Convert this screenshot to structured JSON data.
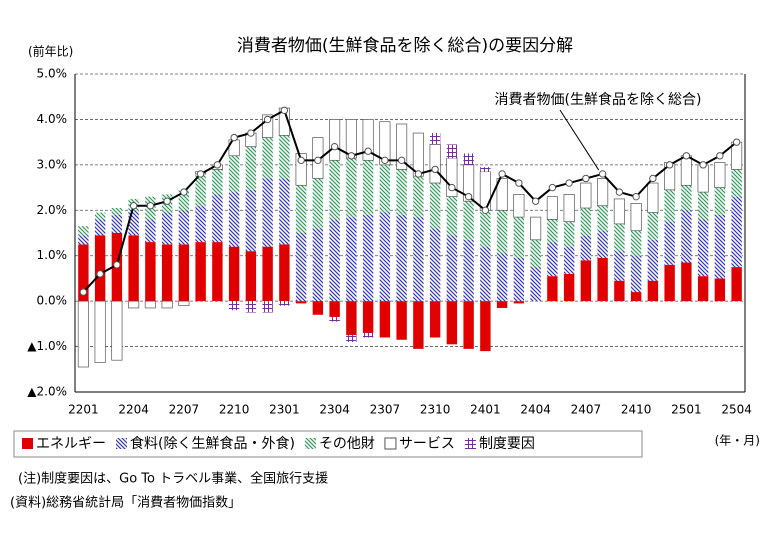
{
  "chart_data": {
    "type": "stacked-bar-line",
    "title": "消費者物価(生鮮食品を除く総合)の要因分解",
    "y_label": "(前年比)",
    "x_label": "(年・月)",
    "notes": [
      "(注)制度要因は、Go To トラベル事業、全国旅行支援",
      "(資料)総務省統計局「消費者物価指数」"
    ],
    "categories": [
      "2201",
      null,
      null,
      "2204",
      null,
      null,
      "2207",
      null,
      null,
      "2210",
      null,
      null,
      "2301",
      null,
      null,
      "2304",
      null,
      null,
      "2307",
      null,
      null,
      "2310",
      null,
      null,
      "2401",
      null,
      null,
      "2404",
      null,
      null,
      "2407",
      null,
      null,
      "2410",
      null,
      null,
      "2501",
      null,
      null,
      "2504"
    ],
    "ylim": [
      -2,
      5
    ],
    "yticks": [
      {
        "value": -2,
        "label": "▲2.0%"
      },
      {
        "value": -1,
        "label": "▲1.0%"
      },
      {
        "value": 0,
        "label": "0.0%"
      },
      {
        "value": 1,
        "label": "1.0%"
      },
      {
        "value": 2,
        "label": "2.0%"
      },
      {
        "value": 3,
        "label": "3.0%"
      },
      {
        "value": 4,
        "label": "4.0%"
      },
      {
        "value": 5,
        "label": "5.0%"
      }
    ],
    "grid": true,
    "series": [
      {
        "name": "エネルギー",
        "color": "#e00000",
        "pattern": "solid",
        "values": [
          1.25,
          1.45,
          1.5,
          1.45,
          1.3,
          1.25,
          1.25,
          1.3,
          1.3,
          1.2,
          1.1,
          1.2,
          1.25,
          -0.05,
          -0.3,
          -0.35,
          -0.75,
          -0.7,
          -0.8,
          -0.85,
          -1.05,
          -0.8,
          -0.95,
          -1.05,
          -1.1,
          -0.15,
          -0.05,
          0.0,
          0.55,
          0.6,
          0.9,
          0.95,
          0.45,
          0.2,
          0.45,
          0.8,
          0.85,
          0.55,
          0.5,
          0.75
        ]
      },
      {
        "name": "食料(除く生鮮食品・外食)",
        "color": "#3333cc",
        "pattern": "hatch",
        "values": [
          0.2,
          0.35,
          0.4,
          0.55,
          0.5,
          0.7,
          0.75,
          0.8,
          1.05,
          1.2,
          1.35,
          1.5,
          1.45,
          1.5,
          1.6,
          1.8,
          1.85,
          1.9,
          1.95,
          1.9,
          1.85,
          1.6,
          1.45,
          1.35,
          1.2,
          1.05,
          0.95,
          0.75,
          0.75,
          0.6,
          0.55,
          0.6,
          0.65,
          0.8,
          0.9,
          0.95,
          1.15,
          1.25,
          1.4,
          1.55
        ]
      },
      {
        "name": "その他財",
        "color": "#2e9e5a",
        "pattern": "hatch",
        "values": [
          0.2,
          0.15,
          0.15,
          0.25,
          0.5,
          0.4,
          0.45,
          0.7,
          0.55,
          0.8,
          0.95,
          0.9,
          0.95,
          1.05,
          1.1,
          1.3,
          1.3,
          1.2,
          1.05,
          1.0,
          0.9,
          1.0,
          0.85,
          0.85,
          0.8,
          0.95,
          0.9,
          0.6,
          0.5,
          0.55,
          0.6,
          0.55,
          0.6,
          0.55,
          0.6,
          0.7,
          0.55,
          0.6,
          0.6,
          0.6
        ]
      },
      {
        "name": "サービス",
        "color": "#ffffff",
        "pattern": "solid",
        "values": [
          -1.45,
          -1.35,
          -1.3,
          -0.15,
          -0.15,
          -0.15,
          -0.1,
          0.05,
          0.1,
          0.35,
          0.3,
          0.5,
          0.6,
          0.7,
          0.9,
          0.9,
          0.85,
          0.9,
          0.95,
          1.0,
          0.95,
          0.85,
          0.85,
          0.8,
          0.85,
          0.7,
          0.5,
          0.5,
          0.5,
          0.6,
          0.55,
          0.6,
          0.55,
          0.6,
          0.65,
          0.6,
          0.65,
          0.6,
          0.55,
          0.6
        ]
      },
      {
        "name": "制度要因",
        "color": "#7030a0",
        "pattern": "grid",
        "values": [
          null,
          null,
          null,
          null,
          null,
          null,
          null,
          null,
          null,
          -0.2,
          -0.25,
          -0.25,
          -0.1,
          null,
          null,
          -0.1,
          -0.15,
          -0.1,
          null,
          null,
          null,
          0.25,
          0.3,
          0.25,
          0.1,
          null,
          null,
          null,
          null,
          null,
          null,
          null,
          null,
          null,
          null,
          null,
          null,
          null,
          null,
          null
        ]
      }
    ],
    "line": {
      "name": "消費者物価(生鮮食品を除く総合)",
      "color": "#000000",
      "values": [
        0.2,
        0.6,
        0.8,
        2.1,
        2.1,
        2.2,
        2.4,
        2.8,
        3.0,
        3.6,
        3.7,
        4.0,
        4.2,
        3.1,
        3.1,
        3.4,
        3.2,
        3.3,
        3.1,
        3.1,
        2.8,
        2.9,
        2.5,
        2.3,
        2.0,
        2.8,
        2.6,
        2.2,
        2.5,
        2.6,
        2.7,
        2.8,
        2.4,
        2.3,
        2.7,
        3.0,
        3.2,
        3.0,
        3.2,
        3.5
      ]
    }
  }
}
